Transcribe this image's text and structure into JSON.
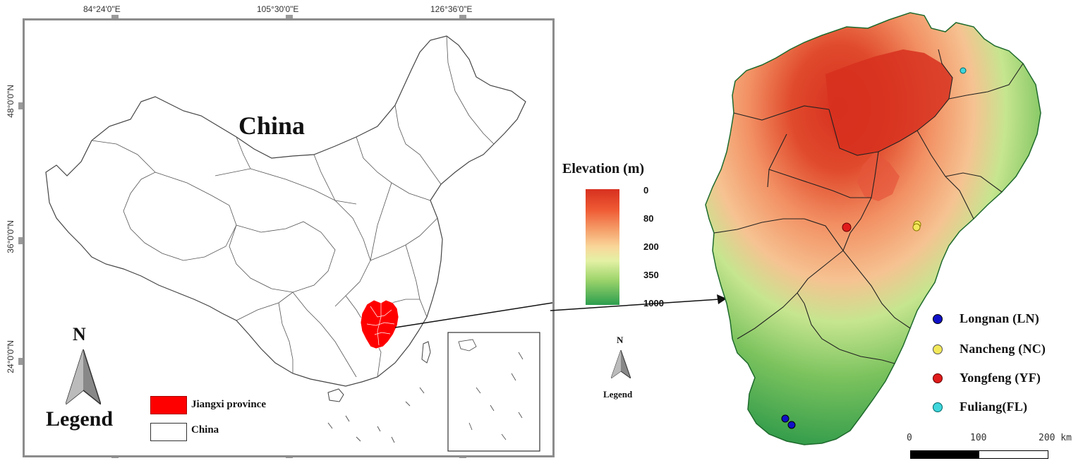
{
  "china_map": {
    "top_coords": [
      "84°24'0\"E",
      "105°30'0\"E",
      "126°36'0\"E"
    ],
    "left_coords": [
      "48°0'0\"N",
      "36°0'0\"N",
      "24°0'0\"N"
    ],
    "country_label": "China",
    "north_letter": "N",
    "legend_title": "Legend",
    "legend_items": [
      {
        "label": "Jiangxi province",
        "color": "#ff0000"
      },
      {
        "label": "China",
        "color": "#ffffff"
      }
    ],
    "highlight_color": "#ff0000"
  },
  "elevation": {
    "title": "Elevation (m)",
    "ticks": [
      "0",
      "80",
      "200",
      "350",
      "1000"
    ],
    "colors": [
      "#d7301f",
      "#f46d43",
      "#f4a582",
      "#fee08b",
      "#d9ef8b",
      "#91cf60",
      "#1a9850"
    ]
  },
  "small_compass": {
    "north_letter": "N",
    "caption": "Legend"
  },
  "sites": [
    {
      "label": "Longnan (LN)",
      "color": "#1010c8"
    },
    {
      "label": "Nancheng (NC)",
      "color": "#f2e85a"
    },
    {
      "label": "Yongfeng (YF)",
      "color": "#e01b1b"
    },
    {
      "label": "Fuliang(FL)",
      "color": "#3fd6dc"
    }
  ],
  "scale_bar": {
    "labels": [
      "0",
      "100",
      "200 km"
    ]
  }
}
